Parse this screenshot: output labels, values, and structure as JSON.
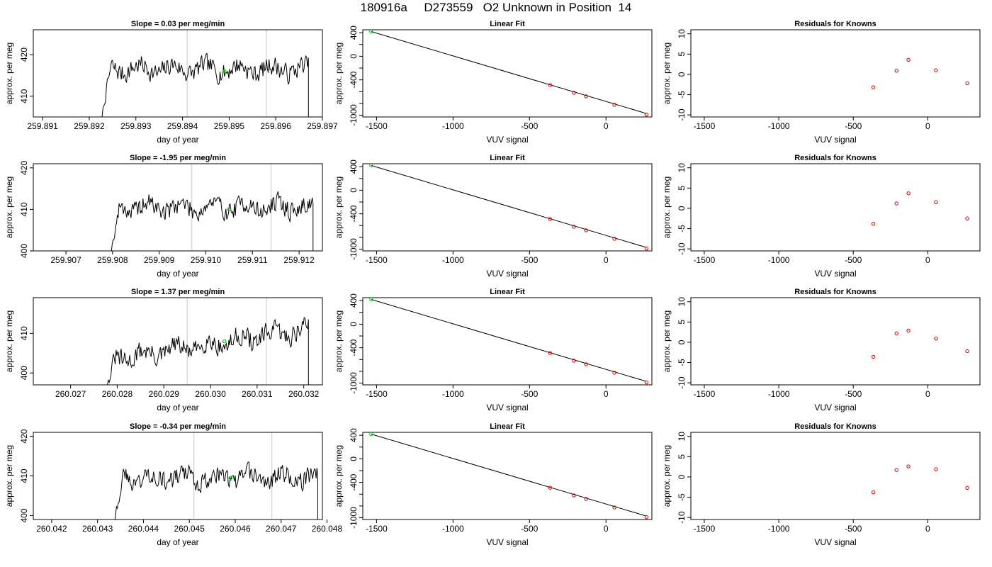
{
  "title": "180916a     D273559   O2 Unknown in Position  14",
  "colors": {
    "trace": "#000000",
    "marker": "#00cc00",
    "residual": "#cc0000",
    "vline": "#c8c8c8"
  },
  "chart_data": [
    {
      "type": "line",
      "title": "Slope =  0.03  per meg/min",
      "xlabel": "day of year",
      "ylabel": "approx. per meg",
      "xlim": [
        259.8908,
        259.897
      ],
      "ylim": [
        405,
        426
      ],
      "xticks": [
        "259.891",
        "259.892",
        "259.893",
        "259.894",
        "259.895",
        "259.896",
        "259.897"
      ],
      "yticks": [
        "410",
        "420"
      ],
      "trace_start": 259.8922,
      "trace_end": 259.8967,
      "level": 416.5,
      "rise": 0,
      "noise": 2.2,
      "seed": 7,
      "vlines": [
        259.8941,
        259.8958
      ],
      "marker": {
        "x": 259.8949,
        "y": 416
      }
    },
    {
      "type": "line",
      "title": "Linear Fit",
      "xlabel": "VUV signal",
      "ylabel": "approx. per meg",
      "xlim": [
        -1590,
        300
      ],
      "ylim": [
        -1030,
        450
      ],
      "xticks": [
        "-1500",
        "-1000",
        "-500",
        "0"
      ],
      "yticks": [
        "400",
        "0",
        "-400",
        "-1000"
      ],
      "fit_line": [
        [
          -1535,
          420
        ],
        [
          260,
          -968
        ]
      ],
      "points": [
        {
          "x": -1535,
          "y": 420,
          "color": "marker"
        },
        {
          "x": -365,
          "y": -490
        },
        {
          "x": -210,
          "y": -620
        },
        {
          "x": -130,
          "y": -680
        },
        {
          "x": 55,
          "y": -825
        },
        {
          "x": 265,
          "y": -990
        }
      ]
    },
    {
      "type": "scatter",
      "title": "Residuals for Knowns",
      "xlabel": "VUV signal",
      "ylabel": "approx. per meg",
      "xlim": [
        -1590,
        350
      ],
      "ylim": [
        -10.5,
        11
      ],
      "xticks": [
        "-1500",
        "-1000",
        "-500",
        "0"
      ],
      "yticks": [
        "10",
        "5",
        "0",
        "-5",
        "-10"
      ],
      "points": [
        {
          "x": -365,
          "y": -3.2
        },
        {
          "x": -210,
          "y": 0.9
        },
        {
          "x": -130,
          "y": 3.6
        },
        {
          "x": 55,
          "y": 1.0
        },
        {
          "x": 265,
          "y": -2.2
        }
      ]
    },
    {
      "type": "line",
      "title": "Slope =  -1.95  per meg/min",
      "xlabel": "day of year",
      "ylabel": "approx. per meg",
      "xlim": [
        259.9063,
        259.9125
      ],
      "ylim": [
        400,
        421
      ],
      "xticks": [
        "259.907",
        "259.908",
        "259.909",
        "259.910",
        "259.911",
        "259.912"
      ],
      "yticks": [
        "400",
        "410",
        "420"
      ],
      "trace_start": 259.9079,
      "trace_end": 259.9123,
      "level": 410.5,
      "rise": 0,
      "noise": 2.2,
      "seed": 19,
      "vlines": [
        259.9097,
        259.9114
      ],
      "marker": {
        "x": 259.9105,
        "y": 410
      }
    },
    {
      "type": "line",
      "title": "Linear Fit",
      "xlabel": "VUV signal",
      "ylabel": "approx. per meg",
      "xlim": [
        -1590,
        300
      ],
      "ylim": [
        -1030,
        450
      ],
      "xticks": [
        "-1500",
        "-1000",
        "-500",
        "0"
      ],
      "yticks": [
        "400",
        "0",
        "-400",
        "-1000"
      ],
      "fit_line": [
        [
          -1535,
          420
        ],
        [
          260,
          -968
        ]
      ],
      "points": [
        {
          "x": -1535,
          "y": 420,
          "color": "marker"
        },
        {
          "x": -365,
          "y": -490
        },
        {
          "x": -210,
          "y": -620
        },
        {
          "x": -130,
          "y": -680
        },
        {
          "x": 55,
          "y": -825
        },
        {
          "x": 265,
          "y": -990
        }
      ]
    },
    {
      "type": "scatter",
      "title": "Residuals for Knowns",
      "xlabel": "VUV signal",
      "ylabel": "approx. per meg",
      "xlim": [
        -1590,
        350
      ],
      "ylim": [
        -10.5,
        11
      ],
      "xticks": [
        "-1500",
        "-1000",
        "-500",
        "0"
      ],
      "yticks": [
        "10",
        "5",
        "0",
        "-5",
        "-10"
      ],
      "points": [
        {
          "x": -365,
          "y": -3.8
        },
        {
          "x": -210,
          "y": 1.2
        },
        {
          "x": -130,
          "y": 3.7
        },
        {
          "x": 55,
          "y": 1.5
        },
        {
          "x": 265,
          "y": -2.5
        }
      ]
    },
    {
      "type": "line",
      "title": "Slope =  1.37  per meg/min",
      "xlabel": "day of year",
      "ylabel": "approx. per meg",
      "xlim": [
        260.0262,
        260.0324
      ],
      "ylim": [
        397,
        419
      ],
      "xticks": [
        "260.027",
        "260.028",
        "260.029",
        "260.030",
        "260.031",
        "260.032"
      ],
      "yticks": [
        "400",
        "410"
      ],
      "trace_start": 260.0277,
      "trace_end": 260.0321,
      "level": 403,
      "rise": 8,
      "noise": 2.4,
      "seed": 31,
      "vlines": [
        260.0295,
        260.0312
      ],
      "marker": {
        "x": 260.0303,
        "y": 408
      }
    },
    {
      "type": "line",
      "title": "Linear Fit",
      "xlabel": "VUV signal",
      "ylabel": "approx. per meg",
      "xlim": [
        -1590,
        300
      ],
      "ylim": [
        -1030,
        450
      ],
      "xticks": [
        "-1500",
        "-1000",
        "-500",
        "0"
      ],
      "yticks": [
        "400",
        "0",
        "-400",
        "-1000"
      ],
      "fit_line": [
        [
          -1535,
          420
        ],
        [
          260,
          -968
        ]
      ],
      "points": [
        {
          "x": -1535,
          "y": 420,
          "color": "marker"
        },
        {
          "x": -365,
          "y": -490
        },
        {
          "x": -210,
          "y": -620
        },
        {
          "x": -130,
          "y": -680
        },
        {
          "x": 55,
          "y": -825
        },
        {
          "x": 265,
          "y": -990
        }
      ]
    },
    {
      "type": "scatter",
      "title": "Residuals for Knowns",
      "xlabel": "VUV signal",
      "ylabel": "approx. per meg",
      "xlim": [
        -1590,
        350
      ],
      "ylim": [
        -10.5,
        11
      ],
      "xticks": [
        "-1500",
        "-1000",
        "-500",
        "0"
      ],
      "yticks": [
        "10",
        "5",
        "0",
        "-5",
        "-10"
      ],
      "points": [
        {
          "x": -365,
          "y": -3.6
        },
        {
          "x": -210,
          "y": 2.2
        },
        {
          "x": -130,
          "y": 2.9
        },
        {
          "x": 55,
          "y": 0.9
        },
        {
          "x": 265,
          "y": -2.2
        }
      ]
    },
    {
      "type": "line",
      "title": "Slope =  -0.34  per meg/min",
      "xlabel": "day of year",
      "ylabel": "approx. per meg",
      "xlim": [
        260.0416,
        260.0479
      ],
      "ylim": [
        399,
        421
      ],
      "xticks": [
        "260.042",
        "260.043",
        "260.044",
        "260.045",
        "260.046",
        "260.047",
        "260.048"
      ],
      "yticks": [
        "400",
        "410",
        "420"
      ],
      "trace_start": 260.0433,
      "trace_end": 260.0478,
      "level": 409.5,
      "rise": 0,
      "noise": 2.3,
      "seed": 43,
      "vlines": [
        260.0451,
        260.0468
      ],
      "marker": {
        "x": 260.0459,
        "y": 409.5
      }
    },
    {
      "type": "line",
      "title": "Linear Fit",
      "xlabel": "VUV signal",
      "ylabel": "approx. per meg",
      "xlim": [
        -1590,
        300
      ],
      "ylim": [
        -1030,
        450
      ],
      "xticks": [
        "-1500",
        "-1000",
        "-500",
        "0"
      ],
      "yticks": [
        "400",
        "0",
        "-400",
        "-1000"
      ],
      "fit_line": [
        [
          -1535,
          420
        ],
        [
          260,
          -968
        ]
      ],
      "points": [
        {
          "x": -1535,
          "y": 420,
          "color": "marker"
        },
        {
          "x": -365,
          "y": -490
        },
        {
          "x": -210,
          "y": -620
        },
        {
          "x": -130,
          "y": -680
        },
        {
          "x": 55,
          "y": -825
        },
        {
          "x": 265,
          "y": -990
        }
      ]
    },
    {
      "type": "scatter",
      "title": "Residuals for Knowns",
      "xlabel": "VUV signal",
      "ylabel": "approx. per meg",
      "xlim": [
        -1590,
        350
      ],
      "ylim": [
        -10.5,
        11
      ],
      "xticks": [
        "-1500",
        "-1000",
        "-500",
        "0"
      ],
      "yticks": [
        "10",
        "5",
        "0",
        "-5",
        "-10"
      ],
      "points": [
        {
          "x": -365,
          "y": -3.8
        },
        {
          "x": -210,
          "y": 1.7
        },
        {
          "x": -130,
          "y": 2.6
        },
        {
          "x": 55,
          "y": 1.9
        },
        {
          "x": 265,
          "y": -2.7
        }
      ]
    }
  ]
}
